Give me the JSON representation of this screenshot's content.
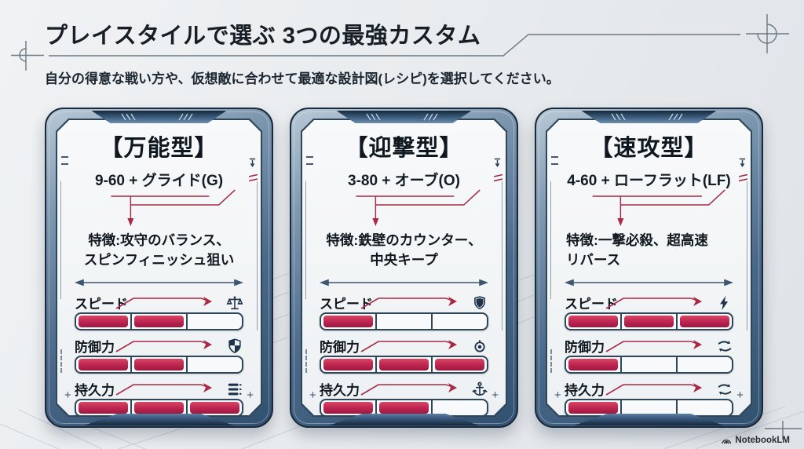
{
  "header": {
    "title": "プレイスタイルで選ぶ 3つの最強カスタム",
    "subtitle": "自分の得意な戦い方や、仮想敵に合わせて最適な設計図(レシピ)を選択してください。"
  },
  "footer": {
    "brand": "NotebookLM"
  },
  "colors": {
    "accent_red": "#b9224a",
    "frame_steel": "#3e5c7a",
    "panel_bg": "#f4f6f8",
    "ink_navy": "#1e3349",
    "line_gray": "#6b7886"
  },
  "cards": [
    {
      "title": "【万能型】",
      "recipe": "9-60 + グライド(G)",
      "feature_lines": [
        "特徴:攻守のバランス、",
        "スピンフィニッシュ狙い"
      ],
      "stats": [
        {
          "label": "スピード",
          "value": 2,
          "max": 3,
          "icon": "balance-scale-icon"
        },
        {
          "label": "防御力",
          "value": 2,
          "max": 3,
          "icon": "shield-quarters-icon"
        },
        {
          "label": "持久力",
          "value": 3,
          "max": 3,
          "icon": "stack-lines-icon"
        }
      ]
    },
    {
      "title": "【迎撃型】",
      "recipe": "3-80 + オーブ(O)",
      "feature_lines": [
        "特徴:鉄壁のカウンター、",
        "中央キープ"
      ],
      "stats": [
        {
          "label": "スピード",
          "value": 1,
          "max": 3,
          "icon": "shield-icon"
        },
        {
          "label": "防御力",
          "value": 3,
          "max": 3,
          "icon": "target-icon"
        },
        {
          "label": "持久力",
          "value": 2,
          "max": 3,
          "icon": "anchor-icon"
        }
      ]
    },
    {
      "title": "【速攻型】",
      "recipe": "4-60 + ローフラット(LF)",
      "feature_lines": [
        "特徴:一撃必殺、超高速",
        "リバース"
      ],
      "stats": [
        {
          "label": "スピード",
          "value": 3,
          "max": 3,
          "icon": "lightning-icon"
        },
        {
          "label": "防御力",
          "value": 1,
          "max": 3,
          "icon": "swap-arrows-icon"
        },
        {
          "label": "持久力",
          "value": 1,
          "max": 3,
          "icon": "swap-arrows-icon"
        }
      ]
    }
  ]
}
